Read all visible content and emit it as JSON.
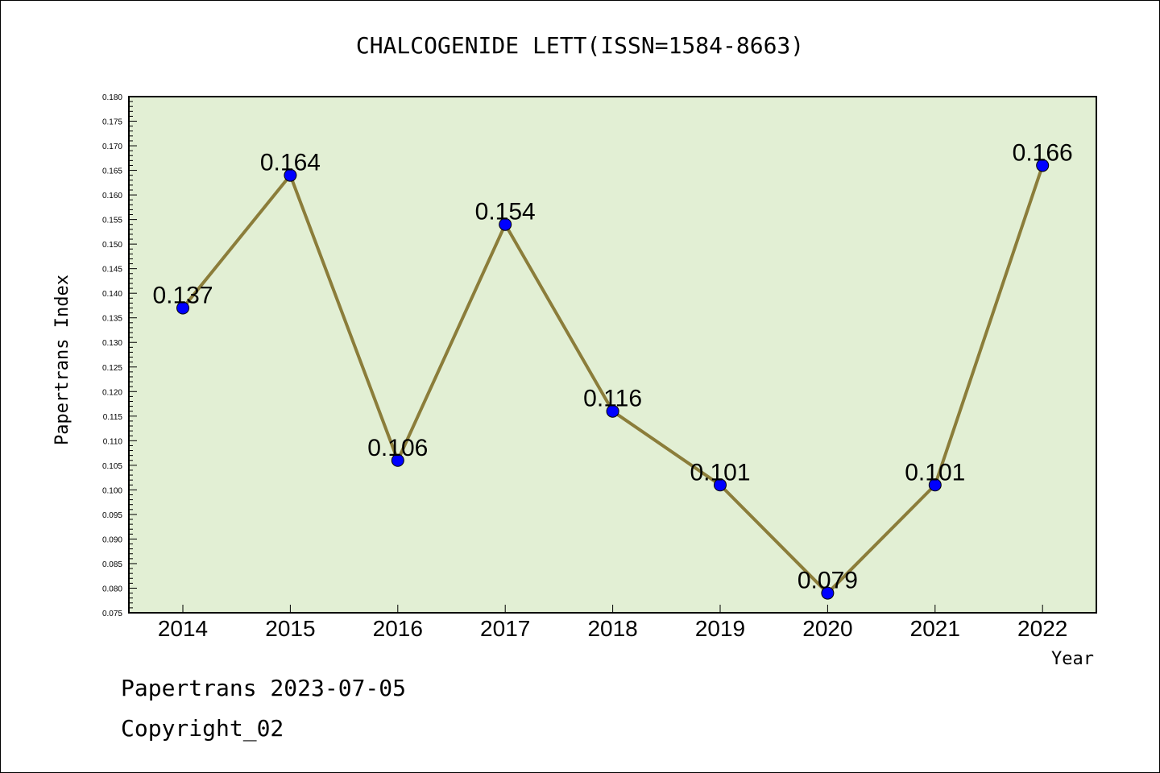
{
  "chart_data": {
    "type": "line",
    "title": "CHALCOGENIDE LETT(ISSN=1584-8663)",
    "xlabel": "Year",
    "ylabel": "Papertrans Index",
    "categories": [
      "2014",
      "2015",
      "2016",
      "2017",
      "2018",
      "2019",
      "2020",
      "2021",
      "2022"
    ],
    "values": [
      0.137,
      0.164,
      0.106,
      0.154,
      0.116,
      0.101,
      0.079,
      0.101,
      0.166
    ],
    "value_labels": [
      "0.137",
      "0.164",
      "0.106",
      "0.154",
      "0.116",
      "0.101",
      "0.079",
      "0.101",
      "0.166"
    ],
    "ylim": [
      0.075,
      0.18
    ],
    "ytick_labels": [
      "0.075",
      "0.080",
      "0.085",
      "0.090",
      "0.095",
      "0.100",
      "0.105",
      "0.110",
      "0.115",
      "0.120",
      "0.125",
      "0.130",
      "0.135",
      "0.140",
      "0.145",
      "0.150",
      "0.155",
      "0.160",
      "0.165",
      "0.170",
      "0.175",
      "0.180"
    ],
    "grid": false,
    "colors": {
      "plot_background": "#e2efd4",
      "line": "#8b7d3a",
      "marker": "#0000ff"
    }
  },
  "footer": {
    "line1": "Papertrans 2023-07-05",
    "line2": "Copyright_02"
  }
}
